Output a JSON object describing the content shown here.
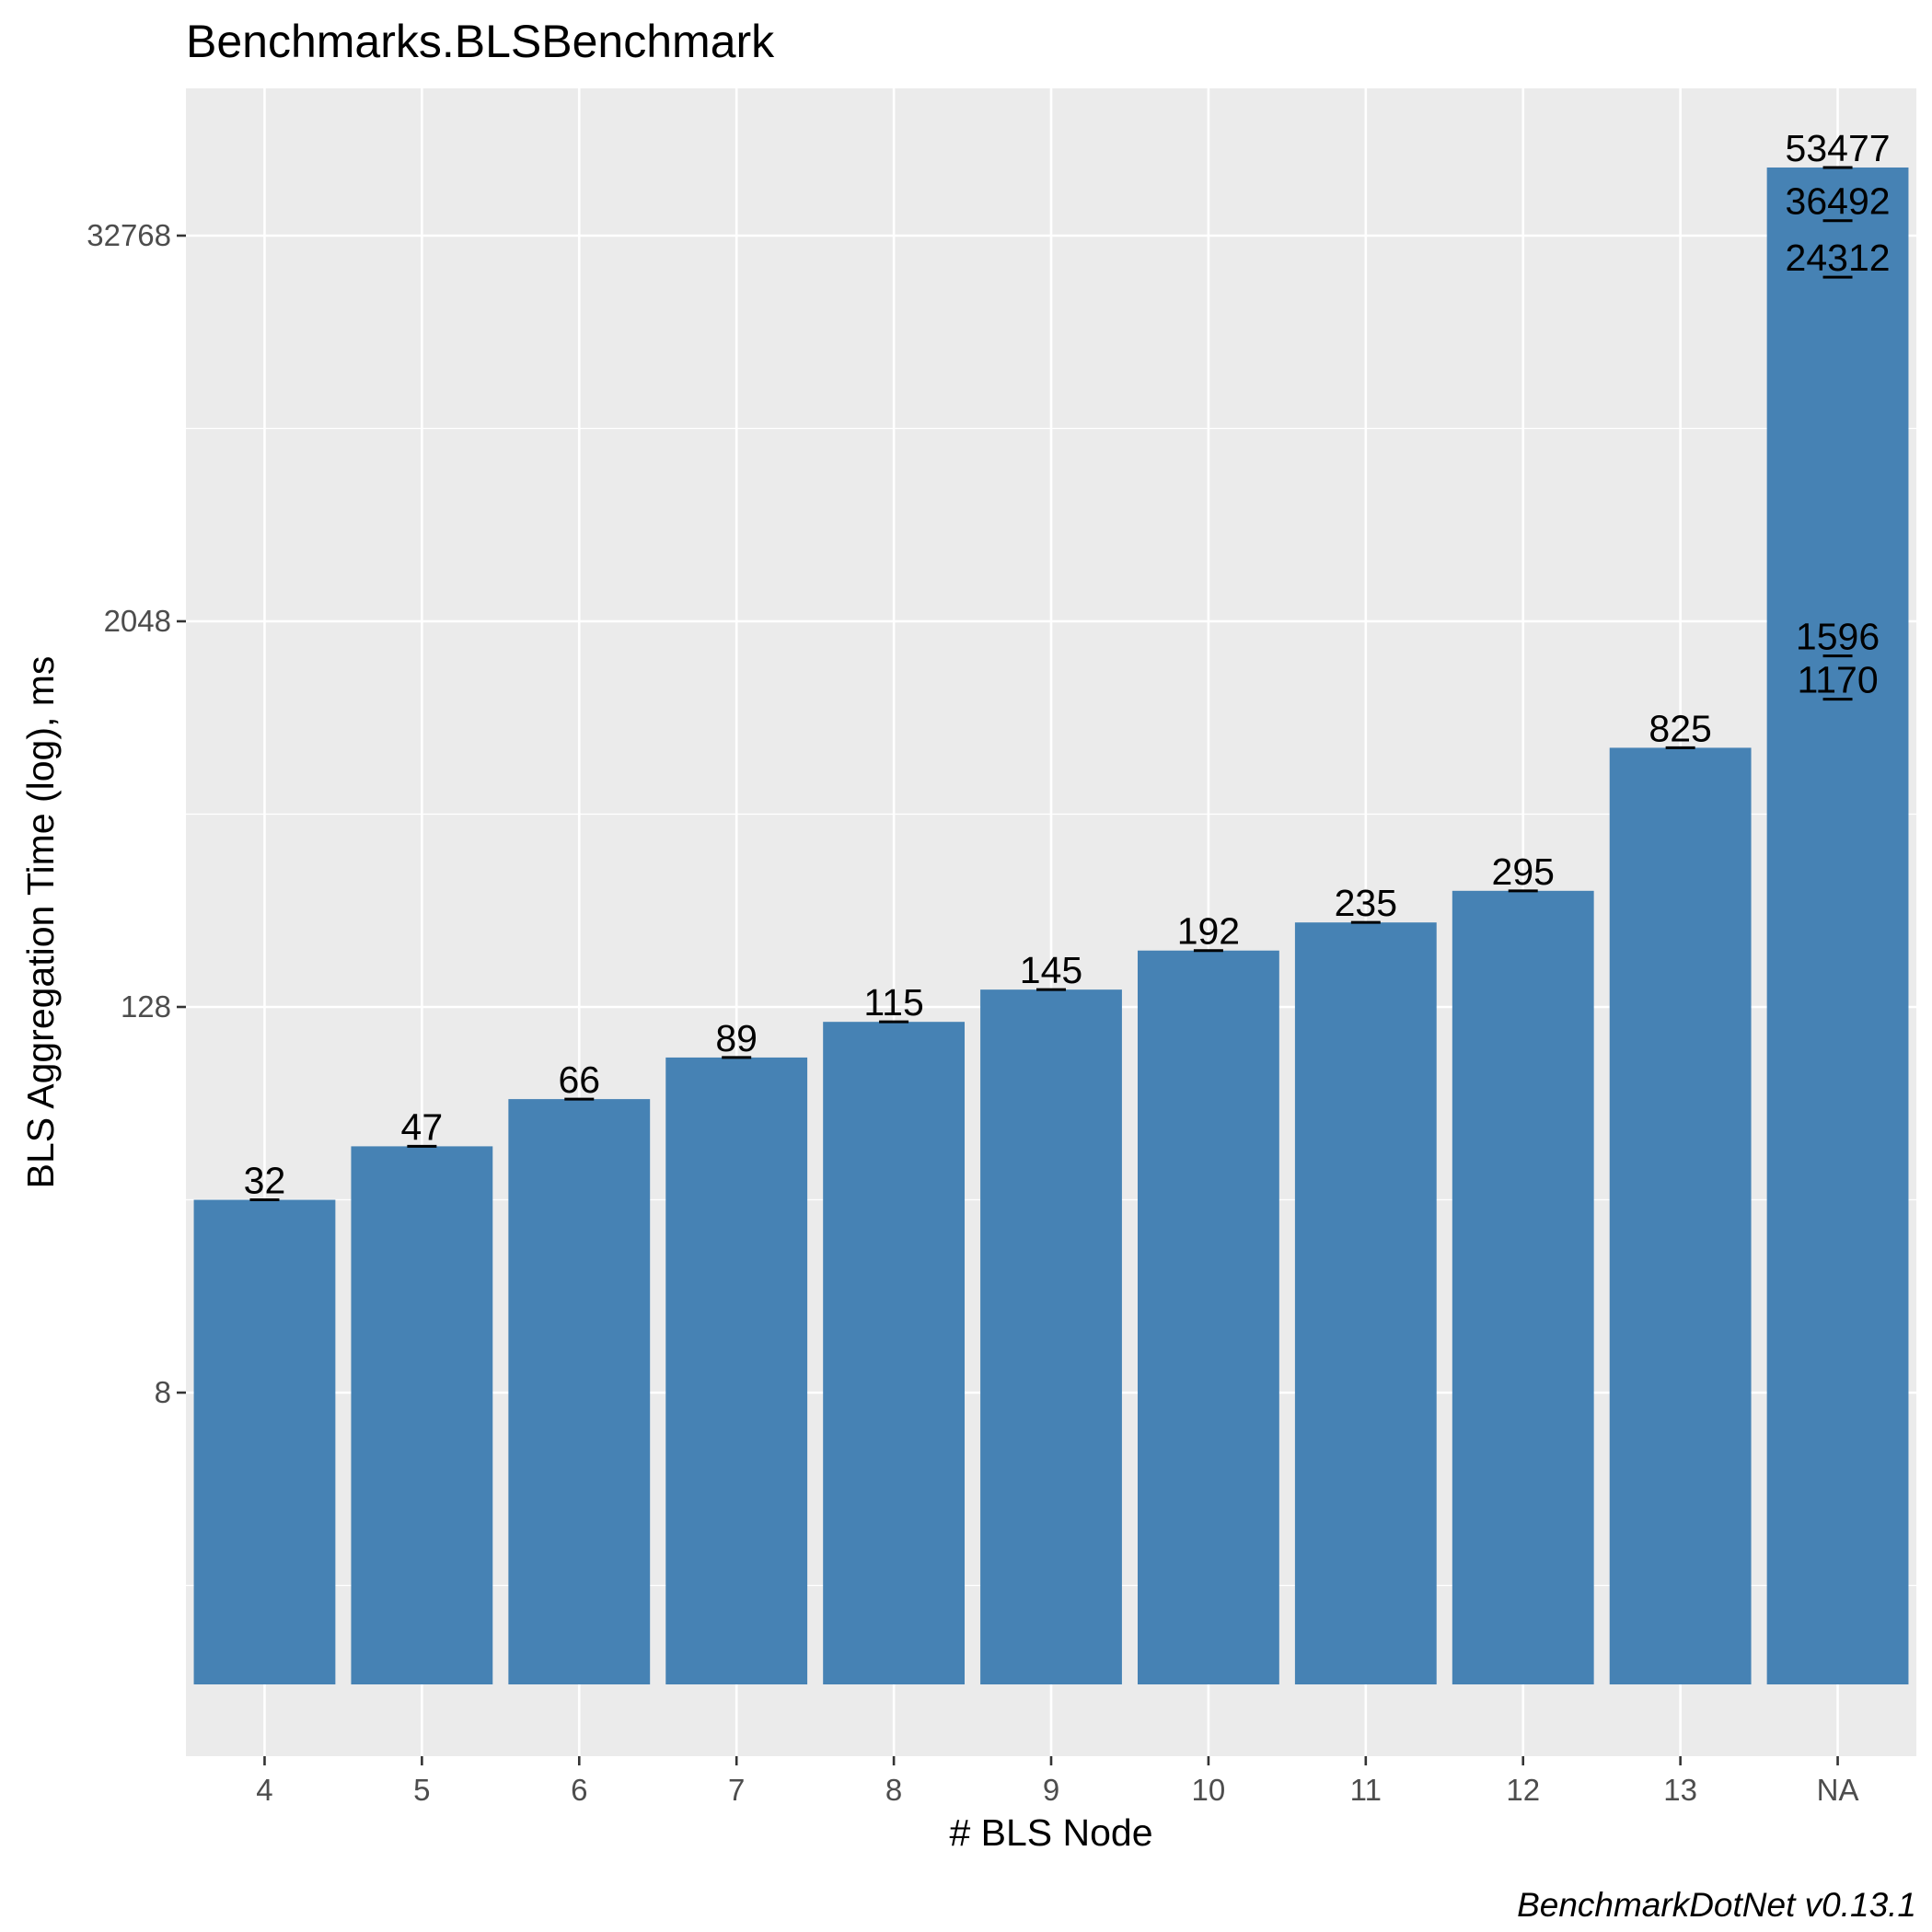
{
  "chart_data": {
    "type": "bar",
    "title": "Benchmarks.BLSBenchmark",
    "xlabel": "# BLS Node",
    "ylabel": "BLS Aggregation Time (log), ms",
    "caption": "BenchmarkDotNet v0.13.1",
    "y_scale": "log2",
    "ylim": [
      1,
      100000
    ],
    "y_ticks": [
      8,
      128,
      2048,
      32768
    ],
    "y_tick_labels": [
      "8",
      "128",
      "2048",
      "32768"
    ],
    "grid": true,
    "categories": [
      "4",
      "5",
      "6",
      "7",
      "8",
      "9",
      "10",
      "11",
      "12",
      "13",
      "NA"
    ],
    "values": [
      32,
      47,
      66,
      89,
      115,
      145,
      192,
      235,
      295,
      825,
      53477
    ],
    "point_labels": [
      {
        "category": "4",
        "value": 32,
        "label": "32"
      },
      {
        "category": "5",
        "value": 47,
        "label": "47"
      },
      {
        "category": "6",
        "value": 66,
        "label": "66"
      },
      {
        "category": "7",
        "value": 89,
        "label": "89"
      },
      {
        "category": "8",
        "value": 115,
        "label": "115"
      },
      {
        "category": "9",
        "value": 145,
        "label": "145"
      },
      {
        "category": "10",
        "value": 192,
        "label": "192"
      },
      {
        "category": "11",
        "value": 235,
        "label": "235"
      },
      {
        "category": "12",
        "value": 295,
        "label": "295"
      },
      {
        "category": "13",
        "value": 825,
        "label": "825"
      },
      {
        "category": "NA",
        "value": 53477,
        "label": "53477"
      },
      {
        "category": "NA",
        "value": 36492,
        "label": "36492"
      },
      {
        "category": "NA",
        "value": 24312,
        "label": "24312"
      },
      {
        "category": "NA",
        "value": 1596,
        "label": "1596"
      },
      {
        "category": "NA",
        "value": 1170,
        "label": "1170"
      }
    ],
    "colors": {
      "bar": "#4682B4",
      "panel": "#EBEBEB",
      "grid": "#FFFFFF",
      "errorbar": "#000000"
    }
  }
}
